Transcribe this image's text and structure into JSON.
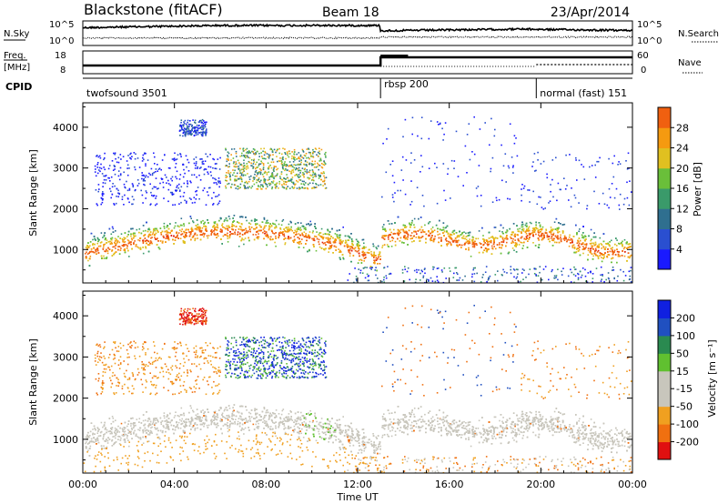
{
  "header": {
    "site": "Blackstone (fitACF)",
    "beam": "Beam 18",
    "date": "23/Apr/2014"
  },
  "side_labels": {
    "nsky": "N.Sky",
    "nsearch": "N.Search",
    "freq_line1": "Freq.",
    "freq_line2": "[MHz]",
    "nave": "Nave",
    "cpid": "CPID"
  },
  "nsky_axis": {
    "top": "10^5",
    "bottom": "10^0"
  },
  "freq_axis": {
    "top": "18",
    "bottom": "8"
  },
  "nave_axis": {
    "top": "60",
    "bottom": "0"
  },
  "cpid_segments": [
    {
      "label": "twofsound 3501",
      "start_hour": 0,
      "end_hour": 13
    },
    {
      "label": "rbsp 200",
      "start_hour": 13,
      "end_hour": 19.8
    },
    {
      "label": "normal (fast) 151",
      "start_hour": 19.8,
      "end_hour": 24
    }
  ],
  "time_axis": {
    "label": "Time UT",
    "ticks": [
      "00:00",
      "04:00",
      "08:00",
      "12:00",
      "16:00",
      "20:00",
      "00:00"
    ]
  },
  "colors": {
    "power": [
      "#1a1aff",
      "#2a4fd0",
      "#2f6f8f",
      "#3a9a6a",
      "#6abf3a",
      "#e0c020",
      "#f59a10",
      "#f06010",
      "#e02010"
    ],
    "velocity": [
      "#e01010",
      "#f07010",
      "#f0a020",
      "#c8c6bc",
      "#c8c6bc",
      "#60c030",
      "#2a8a50",
      "#2050c0",
      "#1020e0"
    ],
    "ground_scatter": "#c8c6bc"
  },
  "chart_data": [
    {
      "type": "heatmap",
      "name": "power",
      "ylabel": "Slant Range [km]",
      "yticks": [
        1000,
        2000,
        3000,
        4000
      ],
      "ylim": [
        180,
        4600
      ],
      "xlim_hours": [
        0,
        24
      ],
      "colorbar_label": "Power [dB]",
      "colorbar_ticks": [
        "4",
        "8",
        "12",
        "16",
        "20",
        "24",
        "28"
      ],
      "colorbar_range": [
        0,
        32
      ]
    },
    {
      "type": "heatmap",
      "name": "velocity",
      "ylabel": "Slant Range [km]",
      "yticks": [
        1000,
        2000,
        3000,
        4000
      ],
      "ylim": [
        180,
        4600
      ],
      "xlim_hours": [
        0,
        24
      ],
      "colorbar_label": "Velocity [m s⁻¹]",
      "colorbar_ticks": [
        "-200",
        "-100",
        "-50",
        "-15",
        "15",
        "50",
        "100",
        "200"
      ]
    }
  ]
}
